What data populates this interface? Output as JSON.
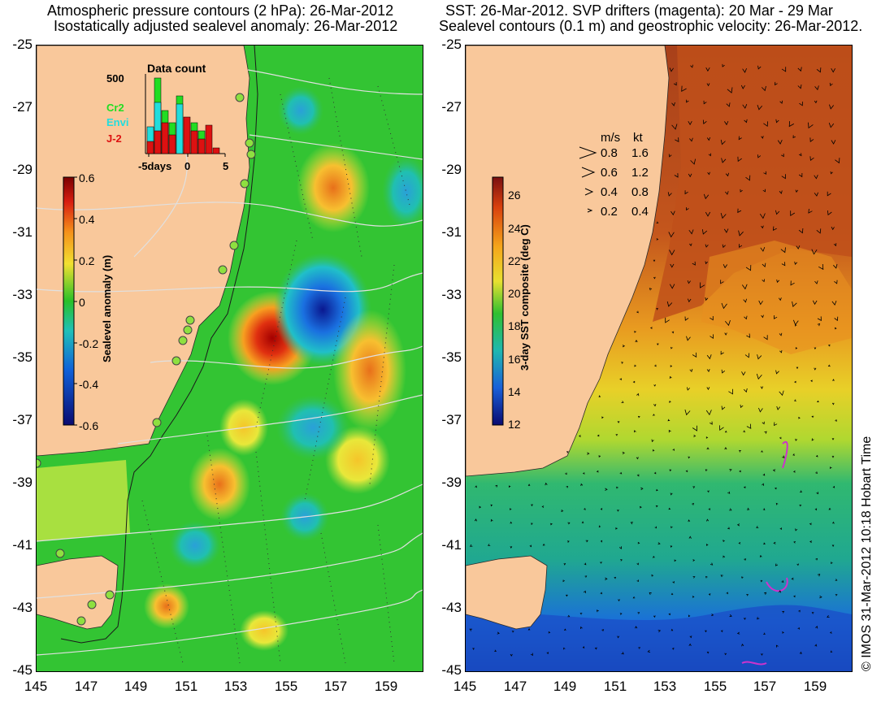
{
  "left_panel": {
    "title_line1": "Atmospheric pressure contours (2 hPa): 26-Mar-2012",
    "title_line2": "Isostatically adjusted sealevel anomaly: 26-Mar-2012",
    "colorbar": {
      "label": "Sealevel anomaly (m)",
      "ticks": [
        "0.6",
        "0.4",
        "0.2",
        "0",
        "-0.2",
        "-0.4",
        "-0.6"
      ]
    },
    "inset": {
      "title": "Data count",
      "y_tick": "500",
      "x_ticks": [
        "-5days",
        "0",
        "5"
      ],
      "legend": [
        {
          "label": "Cr2",
          "color": "#22dd22"
        },
        {
          "label": "Envi",
          "color": "#22dddd"
        },
        {
          "label": "J-2",
          "color": "#dd1111"
        }
      ]
    }
  },
  "right_panel": {
    "title_line1": "SST: 26-Mar-2012. SVP drifters (magenta): 20 Mar - 29 Mar",
    "title_line2": "Sealevel contours (0.1 m) and geostrophic velocity: 26-Mar-2012.",
    "colorbar": {
      "label": "3-day SST composite (deg C)",
      "ticks": [
        "26",
        "24",
        "22",
        "20",
        "18",
        "16",
        "14",
        "12"
      ]
    },
    "velocity_legend": {
      "header_ms": "m/s",
      "header_kt": "kt",
      "rows": [
        {
          "ms": "0.8",
          "kt": "1.6"
        },
        {
          "ms": "0.6",
          "kt": "1.2"
        },
        {
          "ms": "0.4",
          "kt": "0.8"
        },
        {
          "ms": "0.2",
          "kt": "0.4"
        }
      ]
    }
  },
  "axes": {
    "y_ticks": [
      "-25",
      "-27",
      "-29",
      "-31",
      "-33",
      "-35",
      "-37",
      "-39",
      "-41",
      "-43",
      "-45"
    ],
    "x_ticks": [
      "145",
      "147",
      "149",
      "151",
      "153",
      "155",
      "157",
      "159"
    ]
  },
  "credit": "© IMOS 31-Mar-2012 10:18 Hobart Time",
  "colors": {
    "land": "#f9c89b",
    "sla_neutral": "#33c433",
    "sst_warm": "#c04a18",
    "sst_mid": "#f0c020",
    "sst_cool": "#22b07a",
    "sst_cold": "#1a5fd0",
    "drifter": "#cc33cc"
  }
}
